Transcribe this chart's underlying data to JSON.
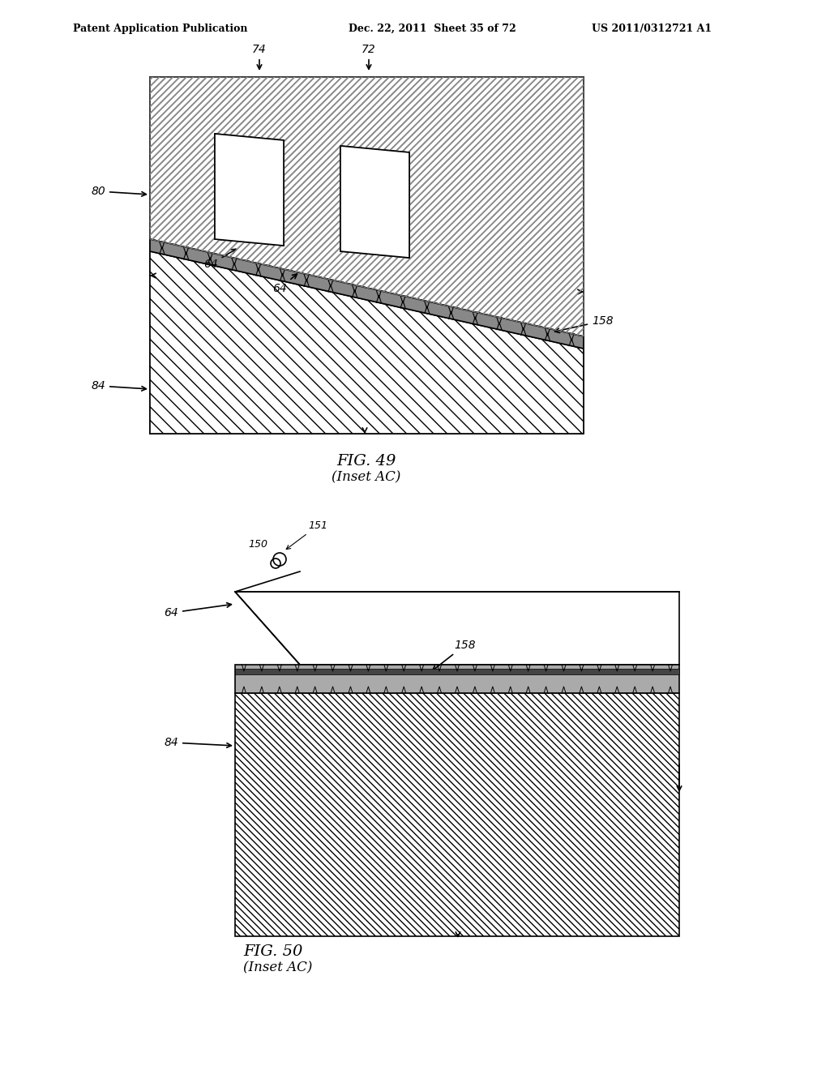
{
  "header_left": "Patent Application Publication",
  "header_mid": "Dec. 22, 2011  Sheet 35 of 72",
  "header_right": "US 2011/0312721 A1",
  "fig49_caption": "FIG. 49",
  "fig49_subcaption": "(Inset AC)",
  "fig50_caption": "FIG. 50",
  "fig50_subcaption": "(Inset AC)",
  "background": "#ffffff",
  "line_color": "#000000",
  "hatch_color": "#555555",
  "dark_band_color": "#333333"
}
